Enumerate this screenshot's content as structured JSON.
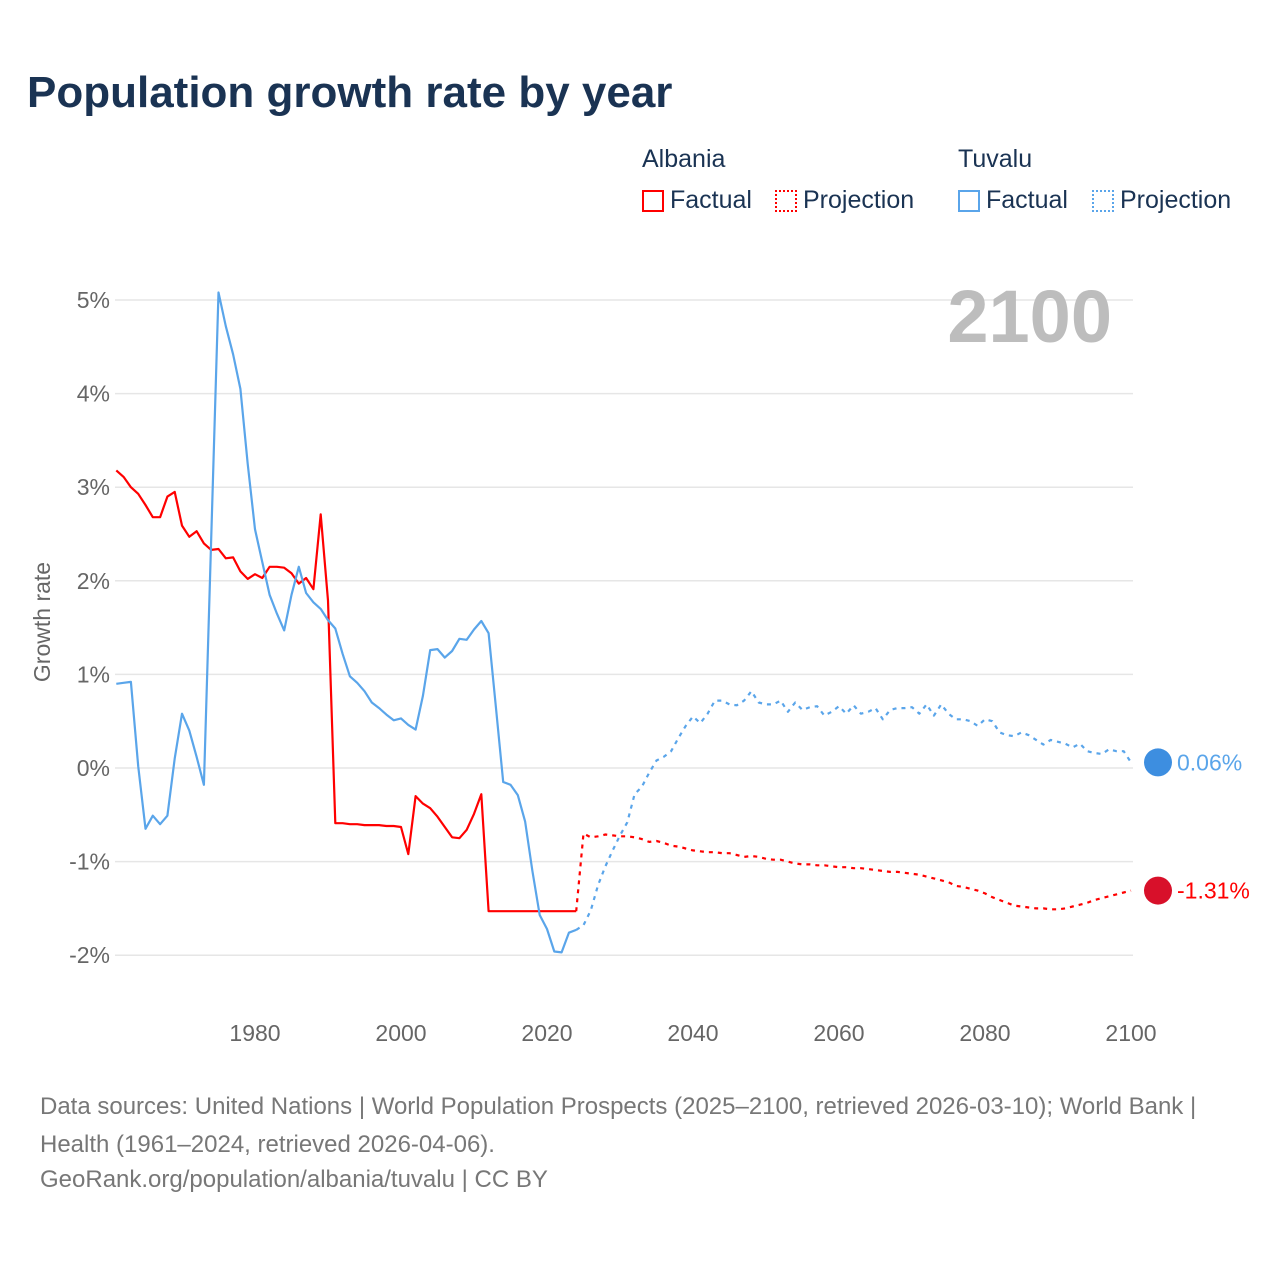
{
  "title": "Population growth rate by year",
  "legend": {
    "groups": [
      {
        "name": "Albania",
        "factual": "Factual",
        "projection": "Projection",
        "color": "#ff0000"
      },
      {
        "name": "Tuvalu",
        "factual": "Factual",
        "projection": "Projection",
        "color": "#5aa5ea"
      }
    ]
  },
  "year_display": "2100",
  "footer": {
    "sources": "Data sources: United Nations | World Population Prospects (2025–2100, retrieved 2026-03-10); World Bank | Health (1961–2024, retrieved 2026-04-06).",
    "credit": "GeoRank.org/population/albania/tuvalu | CC BY"
  },
  "chart_data": {
    "type": "line",
    "title": "Population growth rate by year",
    "xlabel": "",
    "ylabel": "Growth rate",
    "xlim": [
      1961,
      2100
    ],
    "ylim": [
      -2,
      5
    ],
    "x_ticks": [
      "1980",
      "2000",
      "2020",
      "2040",
      "2060",
      "2080",
      "2100"
    ],
    "x_tick_values": [
      1980,
      2000,
      2020,
      2040,
      2060,
      2080,
      2100
    ],
    "y_ticks": [
      "5%",
      "4%",
      "3%",
      "2%",
      "1%",
      "0%",
      "-1%",
      "-2%"
    ],
    "y_tick_values": [
      5,
      4,
      3,
      2,
      1,
      0,
      -1,
      -2
    ],
    "grid": true,
    "legend_position": "top-right",
    "series": [
      {
        "name": "Albania Factual",
        "country": "Albania",
        "kind": "factual",
        "color": "#ff0000",
        "start_year": 1961,
        "values": [
          3.18,
          3.11,
          3.0,
          2.93,
          2.81,
          2.68,
          2.68,
          2.9,
          2.95,
          2.59,
          2.47,
          2.53,
          2.4,
          2.33,
          2.34,
          2.24,
          2.25,
          2.1,
          2.02,
          2.07,
          2.03,
          2.15,
          2.15,
          2.14,
          2.08,
          1.97,
          2.03,
          1.91,
          2.71,
          1.79,
          -0.59,
          -0.59,
          -0.6,
          -0.6,
          -0.61,
          -0.61,
          -0.61,
          -0.62,
          -0.62,
          -0.63,
          -0.92,
          -0.3,
          -0.38,
          -0.43,
          -0.52,
          -0.63,
          -0.74,
          -0.75,
          -0.66,
          -0.49,
          -0.28,
          -1.53,
          -1.53,
          -1.53,
          -1.53,
          -1.53,
          -1.53,
          -1.53,
          -1.53,
          -1.53,
          -1.53,
          -1.53,
          -1.53,
          -1.53
        ]
      },
      {
        "name": "Albania Projection",
        "country": "Albania",
        "kind": "projection",
        "color": "#ff0000",
        "start_year": 2025,
        "values": [
          -0.7,
          -0.74,
          -0.73,
          -0.71,
          -0.72,
          -0.73,
          -0.73,
          -0.74,
          -0.76,
          -0.79,
          -0.78,
          -0.8,
          -0.83,
          -0.84,
          -0.86,
          -0.88,
          -0.89,
          -0.9,
          -0.9,
          -0.91,
          -0.91,
          -0.93,
          -0.95,
          -0.94,
          -0.95,
          -0.97,
          -0.98,
          -0.98,
          -1.0,
          -1.02,
          -1.03,
          -1.03,
          -1.04,
          -1.04,
          -1.05,
          -1.06,
          -1.06,
          -1.07,
          -1.07,
          -1.08,
          -1.09,
          -1.1,
          -1.11,
          -1.11,
          -1.12,
          -1.13,
          -1.14,
          -1.16,
          -1.18,
          -1.2,
          -1.22,
          -1.26,
          -1.27,
          -1.29,
          -1.31,
          -1.34,
          -1.38,
          -1.41,
          -1.44,
          -1.47,
          -1.48,
          -1.49,
          -1.5,
          -1.5,
          -1.51,
          -1.51,
          -1.5,
          -1.48,
          -1.46,
          -1.44,
          -1.41,
          -1.39,
          -1.37,
          -1.35,
          -1.33,
          -1.31
        ]
      },
      {
        "name": "Tuvalu Factual",
        "country": "Tuvalu",
        "kind": "factual",
        "color": "#5aa5ea",
        "start_year": 1961,
        "values": [
          0.9,
          0.91,
          0.92,
          0.02,
          -0.65,
          -0.51,
          -0.6,
          -0.51,
          0.1,
          0.58,
          0.4,
          0.12,
          -0.18,
          2.45,
          5.08,
          4.72,
          4.42,
          4.05,
          3.25,
          2.55,
          2.2,
          1.85,
          1.65,
          1.47,
          1.85,
          2.15,
          1.87,
          1.77,
          1.7,
          1.58,
          1.49,
          1.22,
          0.98,
          0.91,
          0.82,
          0.7,
          0.64,
          0.57,
          0.51,
          0.53,
          0.46,
          0.41,
          0.77,
          1.26,
          1.27,
          1.18,
          1.25,
          1.38,
          1.37,
          1.48,
          1.57,
          1.44,
          0.65,
          -0.15,
          -0.18,
          -0.29,
          -0.57,
          -1.1,
          -1.57,
          -1.72,
          -1.96,
          -1.97,
          -1.76,
          -1.73
        ]
      },
      {
        "name": "Tuvalu Projection",
        "country": "Tuvalu",
        "kind": "projection",
        "color": "#5aa5ea",
        "start_year": 2025,
        "values": [
          -1.68,
          -1.52,
          -1.25,
          -1.05,
          -0.88,
          -0.72,
          -0.58,
          -0.28,
          -0.2,
          -0.05,
          0.08,
          0.12,
          0.18,
          0.32,
          0.45,
          0.55,
          0.48,
          0.58,
          0.72,
          0.72,
          0.68,
          0.67,
          0.72,
          0.82,
          0.7,
          0.68,
          0.68,
          0.72,
          0.6,
          0.7,
          0.62,
          0.65,
          0.66,
          0.56,
          0.6,
          0.66,
          0.58,
          0.67,
          0.58,
          0.6,
          0.64,
          0.52,
          0.62,
          0.64,
          0.64,
          0.65,
          0.58,
          0.68,
          0.56,
          0.68,
          0.58,
          0.52,
          0.52,
          0.5,
          0.45,
          0.52,
          0.5,
          0.38,
          0.35,
          0.34,
          0.38,
          0.35,
          0.3,
          0.25,
          0.3,
          0.28,
          0.26,
          0.22,
          0.26,
          0.18,
          0.16,
          0.15,
          0.2,
          0.18,
          0.18,
          0.06
        ]
      }
    ],
    "end_labels": [
      {
        "country": "Tuvalu",
        "text": "0.06%",
        "value": 0.06,
        "color": "#5aa5ea"
      },
      {
        "country": "Albania",
        "text": "-1.31%",
        "value": -1.31,
        "color": "#ff0000"
      }
    ]
  }
}
